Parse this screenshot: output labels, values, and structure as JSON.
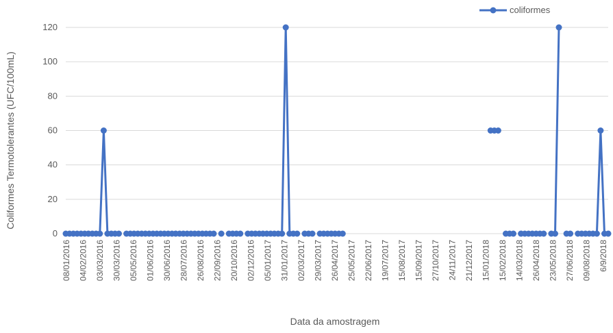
{
  "chart_data": {
    "type": "line",
    "xlabel": "Data da amostragem",
    "ylabel": "Coliformes Termotolerantes (UFC/100mL)",
    "ylim": [
      0,
      120
    ],
    "yticks": [
      0,
      20,
      40,
      60,
      80,
      100,
      120
    ],
    "grid": true,
    "legend_position": "top-right",
    "series_color": "#4472c4",
    "tick_labels": [
      "08/01/2016",
      "04/02/2016",
      "03/03/2016",
      "30/03/2016",
      "05/05/2016",
      "01/06/2016",
      "30/06/2016",
      "28/07/2016",
      "26/08/2016",
      "22/09/2016",
      "20/10/2016",
      "02/12/2016",
      "05/01/2017",
      "31/01/2017",
      "02/03/2017",
      "29/03/2017",
      "26/04/2017",
      "25/05/2017",
      "22/06/2017",
      "19/07/2017",
      "15/08/2017",
      "15/09/2017",
      "27/10/2017",
      "24/11/2017",
      "21/12/2017",
      "15/01/2018",
      "15/02/2018",
      "14/03/2018",
      "26/04/2018",
      "23/05/2018",
      "27/06/2018",
      "09/08/2018",
      "6/9/2018"
    ],
    "series": [
      {
        "name": "coliformes",
        "values": [
          0,
          0,
          0,
          0,
          0,
          0,
          0,
          0,
          0,
          0,
          60,
          0,
          0,
          0,
          0,
          null,
          0,
          0,
          0,
          0,
          0,
          0,
          0,
          0,
          0,
          0,
          0,
          0,
          0,
          0,
          0,
          0,
          0,
          0,
          0,
          0,
          0,
          0,
          0,
          0,
          null,
          0,
          null,
          0,
          0,
          0,
          0,
          null,
          0,
          0,
          0,
          0,
          0,
          0,
          0,
          0,
          0,
          0,
          120,
          0,
          0,
          0,
          null,
          0,
          0,
          0,
          null,
          0,
          0,
          0,
          0,
          0,
          0,
          0,
          null,
          null,
          null,
          null,
          null,
          null,
          null,
          null,
          null,
          null,
          null,
          null,
          null,
          null,
          null,
          null,
          null,
          null,
          null,
          null,
          null,
          null,
          null,
          null,
          null,
          null,
          null,
          null,
          null,
          null,
          null,
          null,
          null,
          null,
          null,
          null,
          null,
          null,
          60,
          60,
          60,
          null,
          0,
          0,
          0,
          null,
          0,
          0,
          0,
          0,
          0,
          0,
          0,
          null,
          0,
          0,
          120,
          null,
          0,
          0,
          null,
          0,
          0,
          0,
          0,
          0,
          0,
          60,
          0,
          0
        ]
      }
    ]
  }
}
